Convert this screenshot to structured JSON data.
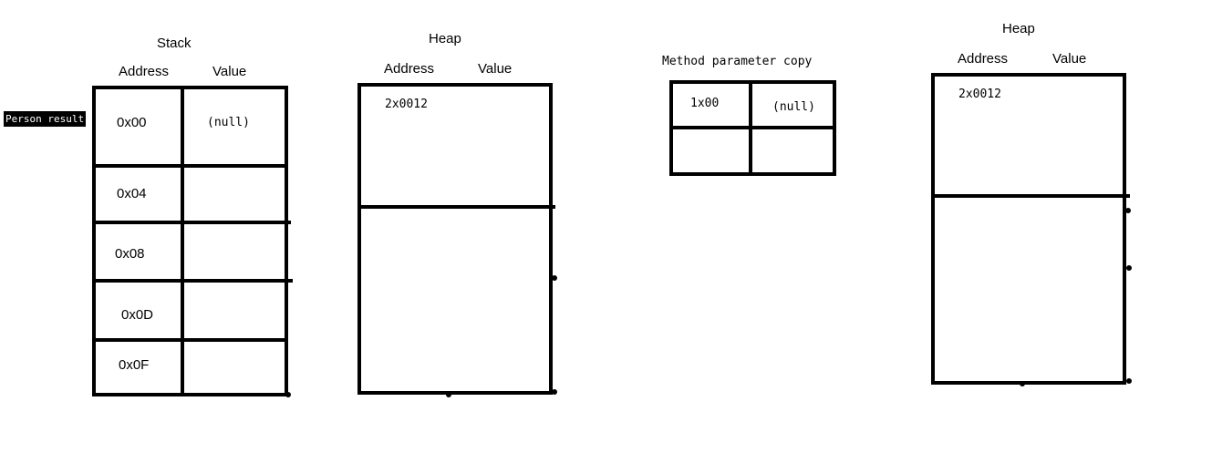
{
  "stack": {
    "title": "Stack",
    "col_address": "Address",
    "col_value": "Value",
    "pointer_label": "Person result",
    "rows": [
      {
        "address": "0x00",
        "value": "(null)"
      },
      {
        "address": "0x04",
        "value": ""
      },
      {
        "address": "0x08",
        "value": ""
      },
      {
        "address": "0x0D",
        "value": ""
      },
      {
        "address": "0x0F",
        "value": ""
      }
    ]
  },
  "heap1": {
    "title": "Heap",
    "col_address": "Address",
    "col_value": "Value",
    "entry": "2x0012"
  },
  "method_copy": {
    "title": "Method parameter copy",
    "address": "1x00",
    "value": "(null)"
  },
  "heap2": {
    "title": "Heap",
    "col_address": "Address",
    "col_value": "Value",
    "entry": "2x0012"
  }
}
